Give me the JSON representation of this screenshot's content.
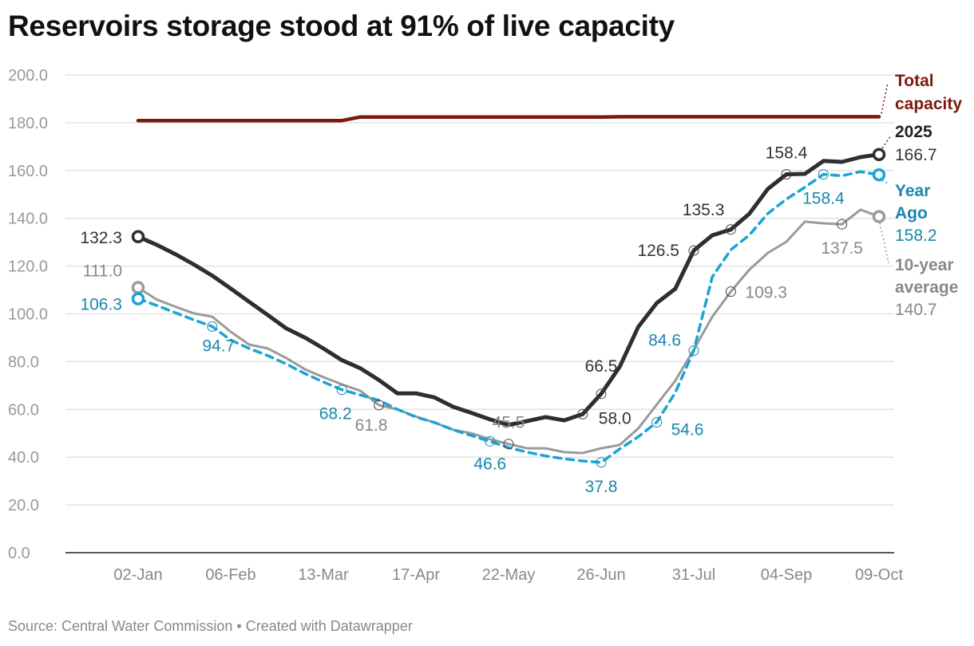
{
  "title": "Reservoirs storage stood at 91% of live capacity",
  "footer": "Source: Central Water Commission • Created with Datawrapper",
  "chart_data": {
    "type": "line",
    "title": "Reservoirs storage stood at 91% of live capacity",
    "xlabel": "",
    "ylabel": "",
    "ylim": [
      0,
      200
    ],
    "yticks": [
      "0.0",
      "20.0",
      "40.0",
      "60.0",
      "80.0",
      "100.0",
      "120.0",
      "140.0",
      "160.0",
      "180.0",
      "200.0"
    ],
    "ytick_values": [
      0,
      20,
      40,
      60,
      80,
      100,
      120,
      140,
      160,
      180,
      200
    ],
    "xticks": [
      {
        "week": 0,
        "label": "02-Jan"
      },
      {
        "week": 5,
        "label": "06-Feb"
      },
      {
        "week": 10,
        "label": "13-Mar"
      },
      {
        "week": 15,
        "label": "17-Apr"
      },
      {
        "week": 20,
        "label": "22-May"
      },
      {
        "week": 25,
        "label": "26-Jun"
      },
      {
        "week": 30,
        "label": "31-Jul"
      },
      {
        "week": 35,
        "label": "04-Sep"
      },
      {
        "week": 40,
        "label": "09-Oct"
      }
    ],
    "x_unit": "week index (weekly from 02-Jan to 09-Oct)",
    "grid": true,
    "series": [
      {
        "key": "capacity",
        "name": "Total capacity",
        "color": "#7b1a0c",
        "dashed": false,
        "values": [
          180.9,
          180.9,
          180.9,
          180.9,
          180.9,
          180.9,
          180.9,
          180.9,
          180.9,
          180.9,
          180.9,
          180.9,
          182.4,
          182.4,
          182.4,
          182.4,
          182.4,
          182.4,
          182.4,
          182.4,
          182.4,
          182.4,
          182.4,
          182.4,
          182.4,
          182.4,
          182.5,
          182.5,
          182.5,
          182.5,
          182.5,
          182.5,
          182.5,
          182.5,
          182.5,
          182.5,
          182.5,
          182.5,
          182.5,
          182.5,
          182.5
        ]
      },
      {
        "key": "avg",
        "name": "10-year average",
        "color": "#9a9a9a",
        "label_color": "#888888",
        "dashed": false,
        "end_value": "140.7",
        "values": [
          111.0,
          106,
          103,
          100.2,
          98.8,
          92.5,
          87.1,
          85.5,
          81.5,
          76.8,
          73.5,
          70.5,
          67.8,
          61.8,
          60,
          57,
          54.5,
          51.5,
          50,
          47.5,
          45.5,
          43.7,
          43.7,
          42.1,
          41.7,
          43.7,
          45.1,
          52,
          62,
          72,
          85,
          98.8,
          109.3,
          118.5,
          125.5,
          130.2,
          138.6,
          137.9,
          137.5,
          143.6,
          140.7
        ]
      },
      {
        "key": "yearago",
        "name": "Year Ago",
        "color": "#1ba3d6",
        "label_color": "#1a87ad",
        "dashed": true,
        "end_value": "158.2",
        "values": [
          106.3,
          103.5,
          100.5,
          97.5,
          94.7,
          89,
          85.5,
          82.5,
          79,
          75,
          71.5,
          68.2,
          66,
          63.8,
          60,
          56.8,
          54.5,
          51.5,
          49,
          46.6,
          44,
          42.1,
          40.5,
          39.3,
          38.4,
          37.8,
          43.4,
          48.5,
          54.6,
          67,
          84.6,
          115.5,
          126.8,
          133,
          142,
          148,
          153,
          158.4,
          157.8,
          159.5,
          158.2
        ]
      },
      {
        "key": "y2025",
        "name": "2025",
        "color": "#2e2e2e",
        "label_color": "#333333",
        "dashed": false,
        "end_value": "166.7",
        "values": [
          132.3,
          128.9,
          125,
          120.7,
          116,
          110.6,
          105,
          99.5,
          93.9,
          90.1,
          85.5,
          80.6,
          77.2,
          72.3,
          66.7,
          66.7,
          65,
          61.1,
          58.5,
          55.8,
          53.5,
          55.1,
          56.8,
          55.4,
          58.0,
          66.5,
          77.8,
          94.5,
          104.5,
          110.5,
          126.5,
          132.9,
          135.3,
          141.9,
          152.3,
          158.4,
          158.6,
          164,
          163.6,
          165.6,
          166.7
        ]
      }
    ],
    "annotations": [
      {
        "series": "y2025",
        "week": 0,
        "text": "132.3"
      },
      {
        "series": "y2025",
        "week": 24,
        "text": "58.0"
      },
      {
        "series": "y2025",
        "week": 25,
        "text": "66.5"
      },
      {
        "series": "y2025",
        "week": 30,
        "text": "126.5"
      },
      {
        "series": "y2025",
        "week": 32,
        "text": "135.3"
      },
      {
        "series": "y2025",
        "week": 35,
        "text": "158.4"
      },
      {
        "series": "yearago",
        "week": 0,
        "text": "106.3"
      },
      {
        "series": "yearago",
        "week": 4,
        "text": "94.7"
      },
      {
        "series": "yearago",
        "week": 11,
        "text": "68.2"
      },
      {
        "series": "yearago",
        "week": 19,
        "text": "46.6"
      },
      {
        "series": "yearago",
        "week": 25,
        "text": "37.8"
      },
      {
        "series": "yearago",
        "week": 28,
        "text": "54.6"
      },
      {
        "series": "yearago",
        "week": 30,
        "text": "84.6"
      },
      {
        "series": "yearago",
        "week": 37,
        "text": "158.4"
      },
      {
        "series": "avg",
        "week": 0,
        "text": "111.0"
      },
      {
        "series": "avg",
        "week": 13,
        "text": "61.8"
      },
      {
        "series": "avg",
        "week": 20,
        "text": "45.5"
      },
      {
        "series": "avg",
        "week": 32,
        "text": "109.3"
      },
      {
        "series": "avg",
        "week": 38,
        "text": "137.5"
      }
    ],
    "legend": [
      {
        "series": "capacity",
        "lines": [
          "Total",
          "capacity"
        ]
      },
      {
        "series": "y2025",
        "lines": [
          "2025"
        ],
        "value": "166.7"
      },
      {
        "series": "yearago",
        "lines": [
          "Year",
          "Ago"
        ],
        "value": "158.2"
      },
      {
        "series": "avg",
        "lines": [
          "10-year",
          "average"
        ],
        "value": "140.7"
      }
    ],
    "legend_placement": "right (direct labels)"
  }
}
